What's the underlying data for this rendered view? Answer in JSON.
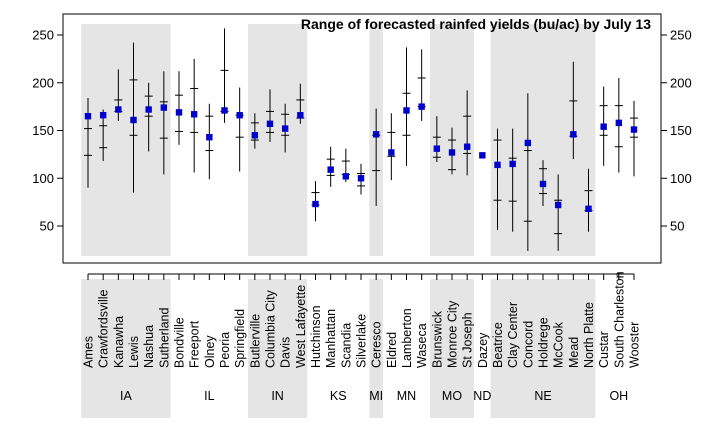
{
  "chart_data": {
    "type": "range",
    "title": "Range of forecasted rainfed yields (bu/ac) by July 13",
    "ylim": [
      15,
      260
    ],
    "yticks": [
      50,
      100,
      150,
      200,
      250
    ],
    "colors": {
      "marker": "#0000cc",
      "shade": "#e5e5e5",
      "line": "#000000"
    },
    "sites": [
      {
        "name": "Ames",
        "state": "IA",
        "min": 90,
        "q1": 124,
        "q3": 152,
        "max": 184,
        "value": 165
      },
      {
        "name": "Crawfordsville",
        "state": "IA",
        "min": 118,
        "q1": 132,
        "q3": 155,
        "max": 172,
        "value": 166
      },
      {
        "name": "Kanawha",
        "state": "IA",
        "min": 160,
        "q1": 170,
        "q3": 182,
        "max": 214,
        "value": 172
      },
      {
        "name": "Lewis",
        "state": "IA",
        "min": 85,
        "q1": 145,
        "q3": 203,
        "max": 242,
        "value": 161
      },
      {
        "name": "Nashua",
        "state": "IA",
        "min": 128,
        "q1": 165,
        "q3": 186,
        "max": 200,
        "value": 172
      },
      {
        "name": "Sutherland",
        "state": "IA",
        "min": 104,
        "q1": 142,
        "q3": 180,
        "max": 212,
        "value": 174
      },
      {
        "name": "Bondville",
        "state": "IL",
        "min": 135,
        "q1": 149,
        "q3": 187,
        "max": 212,
        "value": 169
      },
      {
        "name": "Freeport",
        "state": "IL",
        "min": 106,
        "q1": 148,
        "q3": 194,
        "max": 225,
        "value": 167
      },
      {
        "name": "Olney",
        "state": "IL",
        "min": 99,
        "q1": 129,
        "q3": 165,
        "max": 178,
        "value": 143
      },
      {
        "name": "Peoria",
        "state": "IL",
        "min": 158,
        "q1": 170,
        "q3": 213,
        "max": 257,
        "value": 171
      },
      {
        "name": "Springfield",
        "state": "IL",
        "min": 107,
        "q1": 143,
        "q3": 166,
        "max": 195,
        "value": 166
      },
      {
        "name": "Butlerville",
        "state": "IN",
        "min": 131,
        "q1": 140,
        "q3": 158,
        "max": 168,
        "value": 145
      },
      {
        "name": "Columbia City",
        "state": "IN",
        "min": 138,
        "q1": 148,
        "q3": 170,
        "max": 193,
        "value": 157
      },
      {
        "name": "Davis",
        "state": "IN",
        "min": 127,
        "q1": 145,
        "q3": 167,
        "max": 178,
        "value": 152
      },
      {
        "name": "West Lafayette",
        "state": "IN",
        "min": 157,
        "q1": 163,
        "q3": 182,
        "max": 199,
        "value": 166
      },
      {
        "name": "Hutchinson",
        "state": "KS",
        "min": 55,
        "q1": 72,
        "q3": 85,
        "max": 97,
        "value": 73
      },
      {
        "name": "Manhattan",
        "state": "KS",
        "min": 91,
        "q1": 103,
        "q3": 120,
        "max": 133,
        "value": 109
      },
      {
        "name": "Scandia",
        "state": "KS",
        "min": 96,
        "q1": 104,
        "q3": 118,
        "max": 131,
        "value": 102
      },
      {
        "name": "Silverlake",
        "state": "KS",
        "min": 83,
        "q1": 92,
        "q3": 105,
        "max": 115,
        "value": 100
      },
      {
        "name": "Ceresco",
        "state": "MI",
        "min": 71,
        "q1": 108,
        "q3": 145,
        "max": 173,
        "value": 146
      },
      {
        "name": "Eldred",
        "state": "MN",
        "min": 98,
        "q1": 123,
        "q3": 148,
        "max": 168,
        "value": 127
      },
      {
        "name": "Lamberton",
        "state": "MN",
        "min": 113,
        "q1": 145,
        "q3": 189,
        "max": 237,
        "value": 171
      },
      {
        "name": "Waseca",
        "state": "MN",
        "min": 160,
        "q1": 175,
        "q3": 205,
        "max": 235,
        "value": 175
      },
      {
        "name": "Brunswick",
        "state": "MO",
        "min": 117,
        "q1": 122,
        "q3": 143,
        "max": 165,
        "value": 131
      },
      {
        "name": "Monroe City",
        "state": "MO",
        "min": 104,
        "q1": 109,
        "q3": 140,
        "max": 153,
        "value": 127
      },
      {
        "name": "St Joseph",
        "state": "MO",
        "min": 103,
        "q1": 126,
        "q3": 165,
        "max": 192,
        "value": 133
      },
      {
        "name": "Dazey",
        "state": "ND",
        "min": null,
        "q1": null,
        "q3": null,
        "max": null,
        "value": 124
      },
      {
        "name": "Beatrice",
        "state": "NE",
        "min": 46,
        "q1": 77,
        "q3": 140,
        "max": 152,
        "value": 114
      },
      {
        "name": "Clay Center",
        "state": "NE",
        "min": 44,
        "q1": 76,
        "q3": 121,
        "max": 152,
        "value": 115
      },
      {
        "name": "Concord",
        "state": "NE",
        "min": 24,
        "q1": 55,
        "q3": 129,
        "max": 189,
        "value": 137
      },
      {
        "name": "Holdrege",
        "state": "NE",
        "min": 71,
        "q1": 84,
        "q3": 110,
        "max": 119,
        "value": 94
      },
      {
        "name": "McCook",
        "state": "NE",
        "min": 24,
        "q1": 42,
        "q3": 77,
        "max": 104,
        "value": 72
      },
      {
        "name": "Mead",
        "state": "NE",
        "min": 120,
        "q1": 144,
        "q3": 181,
        "max": 222,
        "value": 146
      },
      {
        "name": "North Platte",
        "state": "NE",
        "min": 44,
        "q1": 66,
        "q3": 87,
        "max": 110,
        "value": 68
      },
      {
        "name": "Custar",
        "state": "OH",
        "min": 113,
        "q1": 145,
        "q3": 176,
        "max": 196,
        "value": 154
      },
      {
        "name": "South Charleston",
        "state": "OH",
        "min": 106,
        "q1": 133,
        "q3": 176,
        "max": 205,
        "value": 158
      },
      {
        "name": "Wooster",
        "state": "OH",
        "min": 102,
        "q1": 143,
        "q3": 163,
        "max": 181,
        "value": 151
      }
    ],
    "states": [
      {
        "name": "IA",
        "shaded": true
      },
      {
        "name": "IL",
        "shaded": false
      },
      {
        "name": "IN",
        "shaded": true
      },
      {
        "name": "KS",
        "shaded": false
      },
      {
        "name": "MI",
        "shaded": true
      },
      {
        "name": "MN",
        "shaded": false
      },
      {
        "name": "MO",
        "shaded": true
      },
      {
        "name": "ND",
        "shaded": false
      },
      {
        "name": "NE",
        "shaded": true
      },
      {
        "name": "OH",
        "shaded": false
      }
    ]
  }
}
